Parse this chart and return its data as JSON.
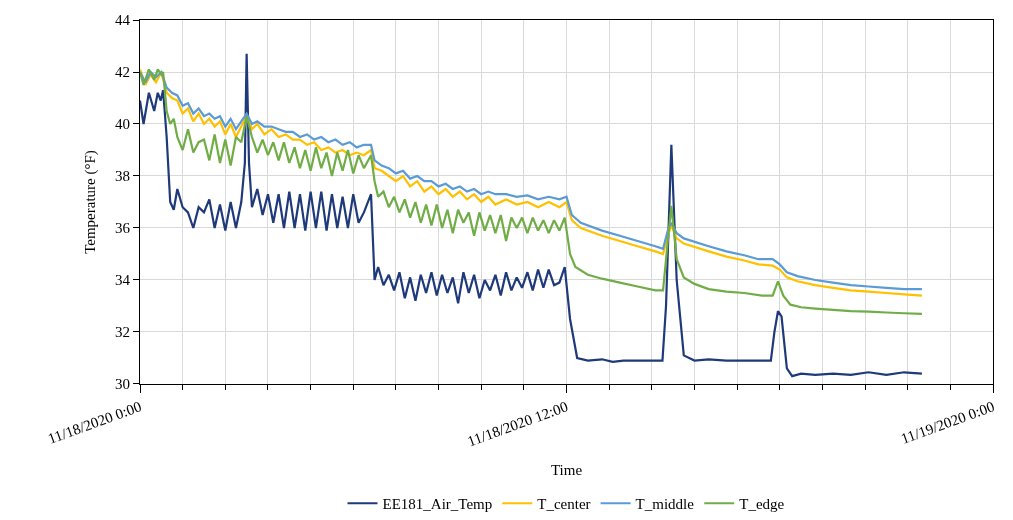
{
  "chart_data": {
    "type": "line",
    "xlabel": "Time",
    "ylabel": "Temperature (°F)",
    "xlim": [
      "2020-11-18T00:00",
      "2020-11-19T00:00"
    ],
    "ylim": [
      30,
      44
    ],
    "xticks": [
      {
        "value": "2020-11-18T00:00",
        "label": "11/18/2020 0:00"
      },
      {
        "value": "2020-11-18T01:12",
        "label": null
      },
      {
        "value": "2020-11-18T02:24",
        "label": null
      },
      {
        "value": "2020-11-18T03:36",
        "label": null
      },
      {
        "value": "2020-11-18T04:48",
        "label": null
      },
      {
        "value": "2020-11-18T06:00",
        "label": null
      },
      {
        "value": "2020-11-18T07:12",
        "label": null
      },
      {
        "value": "2020-11-18T08:24",
        "label": null
      },
      {
        "value": "2020-11-18T09:36",
        "label": null
      },
      {
        "value": "2020-11-18T10:48",
        "label": null
      },
      {
        "value": "2020-11-18T12:00",
        "label": "11/18/2020 12:00"
      },
      {
        "value": "2020-11-18T13:12",
        "label": null
      },
      {
        "value": "2020-11-18T14:24",
        "label": null
      },
      {
        "value": "2020-11-18T15:36",
        "label": null
      },
      {
        "value": "2020-11-18T16:48",
        "label": null
      },
      {
        "value": "2020-11-18T18:00",
        "label": null
      },
      {
        "value": "2020-11-18T19:12",
        "label": null
      },
      {
        "value": "2020-11-18T20:24",
        "label": null
      },
      {
        "value": "2020-11-18T21:36",
        "label": null
      },
      {
        "value": "2020-11-18T22:48",
        "label": null
      },
      {
        "value": "2020-11-19T00:00",
        "label": "11/19/2020 0:00"
      }
    ],
    "yticks": [
      30,
      32,
      34,
      36,
      38,
      40,
      42,
      44
    ],
    "grid": true,
    "legend": "bottom",
    "marker": "none",
    "line_style": "solid",
    "x": [
      "2020-11-18T00:00",
      "2020-11-18T00:09",
      "2020-11-18T00:18",
      "2020-11-18T00:27",
      "2020-11-18T00:36",
      "2020-11-18T00:45",
      "2020-11-18T00:54",
      "2020-11-18T01:03",
      "2020-11-18T01:12",
      "2020-11-18T01:21",
      "2020-11-18T01:30",
      "2020-11-18T01:39",
      "2020-11-18T01:48",
      "2020-11-18T01:57",
      "2020-11-18T02:06",
      "2020-11-18T02:15",
      "2020-11-18T02:24",
      "2020-11-18T02:33",
      "2020-11-18T02:42",
      "2020-11-18T02:51",
      "2020-11-18T03:00",
      "2020-11-18T03:09",
      "2020-11-18T03:18",
      "2020-11-18T03:30",
      "2020-11-18T03:42",
      "2020-11-18T03:54",
      "2020-11-18T04:06",
      "2020-11-18T04:18",
      "2020-11-18T04:30",
      "2020-11-18T04:42",
      "2020-11-18T04:54",
      "2020-11-18T05:06",
      "2020-11-18T05:18",
      "2020-11-18T05:30",
      "2020-11-18T05:42",
      "2020-11-18T05:54",
      "2020-11-18T06:06",
      "2020-11-18T06:18",
      "2020-11-18T06:30",
      "2020-11-18T06:36",
      "2020-11-18T06:48",
      "2020-11-18T07:00",
      "2020-11-18T07:12",
      "2020-11-18T07:24",
      "2020-11-18T07:36",
      "2020-11-18T07:48",
      "2020-11-18T08:00",
      "2020-11-18T08:12",
      "2020-11-18T08:24",
      "2020-11-18T08:36",
      "2020-11-18T08:48",
      "2020-11-18T09:00",
      "2020-11-18T09:12",
      "2020-11-18T09:24",
      "2020-11-18T09:36",
      "2020-11-18T09:48",
      "2020-11-18T10:00",
      "2020-11-18T10:18",
      "2020-11-18T10:36",
      "2020-11-18T10:54",
      "2020-11-18T11:12",
      "2020-11-18T11:30",
      "2020-11-18T11:48",
      "2020-11-18T12:00",
      "2020-11-18T12:09",
      "2020-11-18T12:24",
      "2020-11-18T13:00",
      "2020-11-18T13:30",
      "2020-11-18T14:00",
      "2020-11-18T14:30",
      "2020-11-18T14:43",
      "2020-11-18T14:51",
      "2020-11-18T14:57",
      "2020-11-18T15:06",
      "2020-11-18T15:18",
      "2020-11-18T16:00",
      "2020-11-18T16:30",
      "2020-11-18T17:00",
      "2020-11-18T17:24",
      "2020-11-18T17:48",
      "2020-11-18T18:00",
      "2020-11-18T18:12",
      "2020-11-18T18:30",
      "2020-11-18T19:00",
      "2020-11-18T19:30",
      "2020-11-18T20:00",
      "2020-11-18T20:30",
      "2020-11-18T21:00",
      "2020-11-18T21:30",
      "2020-11-18T22:00"
    ],
    "series": [
      {
        "name": "EE181_Air_Temp",
        "color": "#1f3a7a",
        "x": [
          "2020-11-18T00:00",
          "2020-11-18T00:06",
          "2020-11-18T00:15",
          "2020-11-18T00:24",
          "2020-11-18T00:30",
          "2020-11-18T00:35",
          "2020-11-18T00:39",
          "2020-11-18T00:45",
          "2020-11-18T00:51",
          "2020-11-18T00:57",
          "2020-11-18T01:03",
          "2020-11-18T01:12",
          "2020-11-18T01:21",
          "2020-11-18T01:30",
          "2020-11-18T01:39",
          "2020-11-18T01:48",
          "2020-11-18T01:57",
          "2020-11-18T02:06",
          "2020-11-18T02:15",
          "2020-11-18T02:24",
          "2020-11-18T02:33",
          "2020-11-18T02:42",
          "2020-11-18T02:51",
          "2020-11-18T02:57",
          "2020-11-18T03:00",
          "2020-11-18T03:04",
          "2020-11-18T03:09",
          "2020-11-18T03:18",
          "2020-11-18T03:27",
          "2020-11-18T03:36",
          "2020-11-18T03:45",
          "2020-11-18T03:54",
          "2020-11-18T04:03",
          "2020-11-18T04:12",
          "2020-11-18T04:21",
          "2020-11-18T04:30",
          "2020-11-18T04:39",
          "2020-11-18T04:48",
          "2020-11-18T04:57",
          "2020-11-18T05:06",
          "2020-11-18T05:15",
          "2020-11-18T05:24",
          "2020-11-18T05:33",
          "2020-11-18T05:42",
          "2020-11-18T05:51",
          "2020-11-18T06:00",
          "2020-11-18T06:09",
          "2020-11-18T06:18",
          "2020-11-18T06:30",
          "2020-11-18T06:36",
          "2020-11-18T06:42",
          "2020-11-18T06:51",
          "2020-11-18T07:00",
          "2020-11-18T07:09",
          "2020-11-18T07:18",
          "2020-11-18T07:27",
          "2020-11-18T07:36",
          "2020-11-18T07:45",
          "2020-11-18T07:54",
          "2020-11-18T08:03",
          "2020-11-18T08:12",
          "2020-11-18T08:21",
          "2020-11-18T08:30",
          "2020-11-18T08:39",
          "2020-11-18T08:48",
          "2020-11-18T08:57",
          "2020-11-18T09:06",
          "2020-11-18T09:15",
          "2020-11-18T09:24",
          "2020-11-18T09:33",
          "2020-11-18T09:42",
          "2020-11-18T09:51",
          "2020-11-18T10:00",
          "2020-11-18T10:09",
          "2020-11-18T10:18",
          "2020-11-18T10:27",
          "2020-11-18T10:36",
          "2020-11-18T10:45",
          "2020-11-18T10:54",
          "2020-11-18T11:03",
          "2020-11-18T11:12",
          "2020-11-18T11:21",
          "2020-11-18T11:30",
          "2020-11-18T11:39",
          "2020-11-18T11:48",
          "2020-11-18T11:57",
          "2020-11-18T12:06",
          "2020-11-18T12:18",
          "2020-11-18T12:36",
          "2020-11-18T13:00",
          "2020-11-18T13:18",
          "2020-11-18T13:36",
          "2020-11-18T14:00",
          "2020-11-18T14:24",
          "2020-11-18T14:42",
          "2020-11-18T14:48",
          "2020-11-18T14:57",
          "2020-11-18T15:06",
          "2020-11-18T15:18",
          "2020-11-18T15:36",
          "2020-11-18T16:00",
          "2020-11-18T16:30",
          "2020-11-18T17:00",
          "2020-11-18T17:30",
          "2020-11-18T17:45",
          "2020-11-18T17:51",
          "2020-11-18T17:57",
          "2020-11-18T18:03",
          "2020-11-18T18:12",
          "2020-11-18T18:21",
          "2020-11-18T18:36",
          "2020-11-18T19:00",
          "2020-11-18T19:30",
          "2020-11-18T20:00",
          "2020-11-18T20:30",
          "2020-11-18T21:00",
          "2020-11-18T21:30",
          "2020-11-18T22:00"
        ],
        "values": [
          40.9,
          40.0,
          41.2,
          40.5,
          41.2,
          40.9,
          41.3,
          39.5,
          37.0,
          36.7,
          37.5,
          36.8,
          36.6,
          36.0,
          36.8,
          36.6,
          37.1,
          36.0,
          36.9,
          35.9,
          37.0,
          36.0,
          37.0,
          38.5,
          42.7,
          38.5,
          36.8,
          37.5,
          36.5,
          37.3,
          36.2,
          37.3,
          36.0,
          37.4,
          36.0,
          37.3,
          35.9,
          37.4,
          36.0,
          37.4,
          35.9,
          37.3,
          36.0,
          37.2,
          36.0,
          37.3,
          36.2,
          36.6,
          37.3,
          34.0,
          34.5,
          33.8,
          34.2,
          33.6,
          34.3,
          33.3,
          34.1,
          33.2,
          34.2,
          33.5,
          34.3,
          33.4,
          34.2,
          33.5,
          34.1,
          33.1,
          34.3,
          33.5,
          34.2,
          33.3,
          34.0,
          33.6,
          34.2,
          33.4,
          34.3,
          33.6,
          34.1,
          33.7,
          34.3,
          33.6,
          34.4,
          33.7,
          34.4,
          33.8,
          33.9,
          34.5,
          32.5,
          31.0,
          30.9,
          30.95,
          30.85,
          30.9,
          30.9,
          30.9,
          30.9,
          33.0,
          39.2,
          34.0,
          31.1,
          30.9,
          30.95,
          30.9,
          30.9,
          30.9,
          30.9,
          32.0,
          32.8,
          32.6,
          30.6,
          30.3,
          30.4,
          30.35,
          30.4,
          30.35,
          30.45,
          30.35,
          30.45,
          30.4
        ]
      },
      {
        "name": "T_center",
        "color": "#ffc000",
        "values": [
          42.1,
          41.5,
          41.9,
          41.6,
          42.0,
          41.2,
          41.0,
          40.9,
          40.4,
          40.6,
          40.1,
          40.4,
          40.0,
          40.2,
          39.9,
          40.1,
          39.6,
          40.0,
          39.5,
          39.9,
          40.3,
          39.8,
          40.0,
          39.6,
          39.8,
          39.5,
          39.6,
          39.4,
          39.4,
          39.2,
          39.3,
          39.0,
          39.1,
          38.9,
          39.0,
          38.8,
          38.9,
          38.8,
          39.0,
          38.3,
          38.2,
          38.0,
          37.8,
          38.0,
          37.6,
          37.8,
          37.4,
          37.6,
          37.3,
          37.5,
          37.2,
          37.4,
          37.1,
          37.3,
          37.0,
          37.2,
          36.9,
          37.1,
          36.9,
          37.0,
          36.8,
          37.0,
          36.8,
          37.0,
          36.3,
          36.0,
          35.7,
          35.5,
          35.3,
          35.1,
          35.0,
          35.7,
          36.1,
          35.6,
          35.4,
          35.1,
          34.9,
          34.75,
          34.6,
          34.55,
          34.4,
          34.1,
          33.95,
          33.8,
          33.7,
          33.6,
          33.55,
          33.5,
          33.45,
          33.4
        ]
      },
      {
        "name": "T_middle",
        "color": "#5b9bd5",
        "values": [
          42.0,
          41.6,
          42.0,
          41.8,
          42.0,
          41.4,
          41.2,
          41.1,
          40.7,
          40.8,
          40.4,
          40.6,
          40.3,
          40.4,
          40.2,
          40.3,
          39.9,
          40.2,
          39.8,
          40.1,
          40.4,
          40.0,
          40.1,
          39.9,
          39.9,
          39.8,
          39.7,
          39.7,
          39.5,
          39.6,
          39.4,
          39.5,
          39.3,
          39.4,
          39.2,
          39.3,
          39.1,
          39.2,
          39.2,
          38.6,
          38.4,
          38.3,
          38.1,
          38.2,
          37.9,
          38.0,
          37.8,
          37.8,
          37.6,
          37.7,
          37.5,
          37.6,
          37.4,
          37.5,
          37.3,
          37.4,
          37.3,
          37.3,
          37.2,
          37.25,
          37.1,
          37.2,
          37.1,
          37.2,
          36.5,
          36.2,
          35.9,
          35.7,
          35.5,
          35.3,
          35.2,
          35.9,
          36.2,
          35.8,
          35.6,
          35.3,
          35.1,
          34.95,
          34.8,
          34.8,
          34.6,
          34.3,
          34.15,
          34.0,
          33.9,
          33.8,
          33.75,
          33.7,
          33.65,
          33.65
        ]
      },
      {
        "name": "T_edge",
        "color": "#70ad47",
        "x": [
          "2020-11-18T00:00",
          "2020-11-18T00:06",
          "2020-11-18T00:15",
          "2020-11-18T00:24",
          "2020-11-18T00:30",
          "2020-11-18T00:36",
          "2020-11-18T00:39",
          "2020-11-18T00:45",
          "2020-11-18T00:51",
          "2020-11-18T00:57",
          "2020-11-18T01:03",
          "2020-11-18T01:12",
          "2020-11-18T01:21",
          "2020-11-18T01:30",
          "2020-11-18T01:39",
          "2020-11-18T01:48",
          "2020-11-18T01:57",
          "2020-11-18T02:06",
          "2020-11-18T02:15",
          "2020-11-18T02:24",
          "2020-11-18T02:33",
          "2020-11-18T02:42",
          "2020-11-18T02:51",
          "2020-11-18T03:00",
          "2020-11-18T03:09",
          "2020-11-18T03:18",
          "2020-11-18T03:27",
          "2020-11-18T03:36",
          "2020-11-18T03:45",
          "2020-11-18T03:54",
          "2020-11-18T04:03",
          "2020-11-18T04:12",
          "2020-11-18T04:21",
          "2020-11-18T04:30",
          "2020-11-18T04:39",
          "2020-11-18T04:48",
          "2020-11-18T04:57",
          "2020-11-18T05:06",
          "2020-11-18T05:15",
          "2020-11-18T05:24",
          "2020-11-18T05:33",
          "2020-11-18T05:42",
          "2020-11-18T05:51",
          "2020-11-18T06:00",
          "2020-11-18T06:09",
          "2020-11-18T06:18",
          "2020-11-18T06:30",
          "2020-11-18T06:36",
          "2020-11-18T06:42",
          "2020-11-18T06:51",
          "2020-11-18T07:00",
          "2020-11-18T07:09",
          "2020-11-18T07:18",
          "2020-11-18T07:27",
          "2020-11-18T07:36",
          "2020-11-18T07:45",
          "2020-11-18T07:54",
          "2020-11-18T08:03",
          "2020-11-18T08:12",
          "2020-11-18T08:21",
          "2020-11-18T08:30",
          "2020-11-18T08:39",
          "2020-11-18T08:48",
          "2020-11-18T08:57",
          "2020-11-18T09:06",
          "2020-11-18T09:15",
          "2020-11-18T09:24",
          "2020-11-18T09:33",
          "2020-11-18T09:42",
          "2020-11-18T09:51",
          "2020-11-18T10:00",
          "2020-11-18T10:09",
          "2020-11-18T10:18",
          "2020-11-18T10:27",
          "2020-11-18T10:36",
          "2020-11-18T10:45",
          "2020-11-18T10:54",
          "2020-11-18T11:03",
          "2020-11-18T11:12",
          "2020-11-18T11:21",
          "2020-11-18T11:30",
          "2020-11-18T11:39",
          "2020-11-18T11:48",
          "2020-11-18T11:57",
          "2020-11-18T12:06",
          "2020-11-18T12:15",
          "2020-11-18T12:36",
          "2020-11-18T13:00",
          "2020-11-18T13:30",
          "2020-11-18T14:00",
          "2020-11-18T14:30",
          "2020-11-18T14:43",
          "2020-11-18T14:51",
          "2020-11-18T14:57",
          "2020-11-18T15:06",
          "2020-11-18T15:18",
          "2020-11-18T15:36",
          "2020-11-18T16:00",
          "2020-11-18T16:30",
          "2020-11-18T17:00",
          "2020-11-18T17:30",
          "2020-11-18T17:48",
          "2020-11-18T17:57",
          "2020-11-18T18:06",
          "2020-11-18T18:18",
          "2020-11-18T18:36",
          "2020-11-18T19:00",
          "2020-11-18T19:30",
          "2020-11-18T20:00",
          "2020-11-18T20:30",
          "2020-11-18T21:00",
          "2020-11-18T21:30",
          "2020-11-18T22:00"
        ],
        "values": [
          42.0,
          41.5,
          42.1,
          41.7,
          42.1,
          41.9,
          42.0,
          40.5,
          40.0,
          40.2,
          39.5,
          39.0,
          39.8,
          38.9,
          39.3,
          39.4,
          38.6,
          39.6,
          38.5,
          39.4,
          38.4,
          39.5,
          39.3,
          40.3,
          39.5,
          38.9,
          39.4,
          38.8,
          39.3,
          38.6,
          39.3,
          38.5,
          39.1,
          38.3,
          39.0,
          38.2,
          39.1,
          38.3,
          38.9,
          38.0,
          38.9,
          38.2,
          39.0,
          38.1,
          38.8,
          38.3,
          38.8,
          37.8,
          37.2,
          37.4,
          36.8,
          37.2,
          36.6,
          37.1,
          36.4,
          37.0,
          36.2,
          36.9,
          36.1,
          36.9,
          36.0,
          36.7,
          35.8,
          36.7,
          36.2,
          36.6,
          35.7,
          36.6,
          35.9,
          36.5,
          35.8,
          36.5,
          35.5,
          36.4,
          36.0,
          36.4,
          35.8,
          36.4,
          35.9,
          36.3,
          35.8,
          36.3,
          35.9,
          36.4,
          35.0,
          34.5,
          34.2,
          34.05,
          33.9,
          33.75,
          33.6,
          33.6,
          35.5,
          36.85,
          34.8,
          34.1,
          33.85,
          33.65,
          33.55,
          33.5,
          33.4,
          33.4,
          33.95,
          33.4,
          33.05,
          32.95,
          32.9,
          32.85,
          32.8,
          32.78,
          32.75,
          32.72,
          32.7
        ]
      }
    ]
  }
}
